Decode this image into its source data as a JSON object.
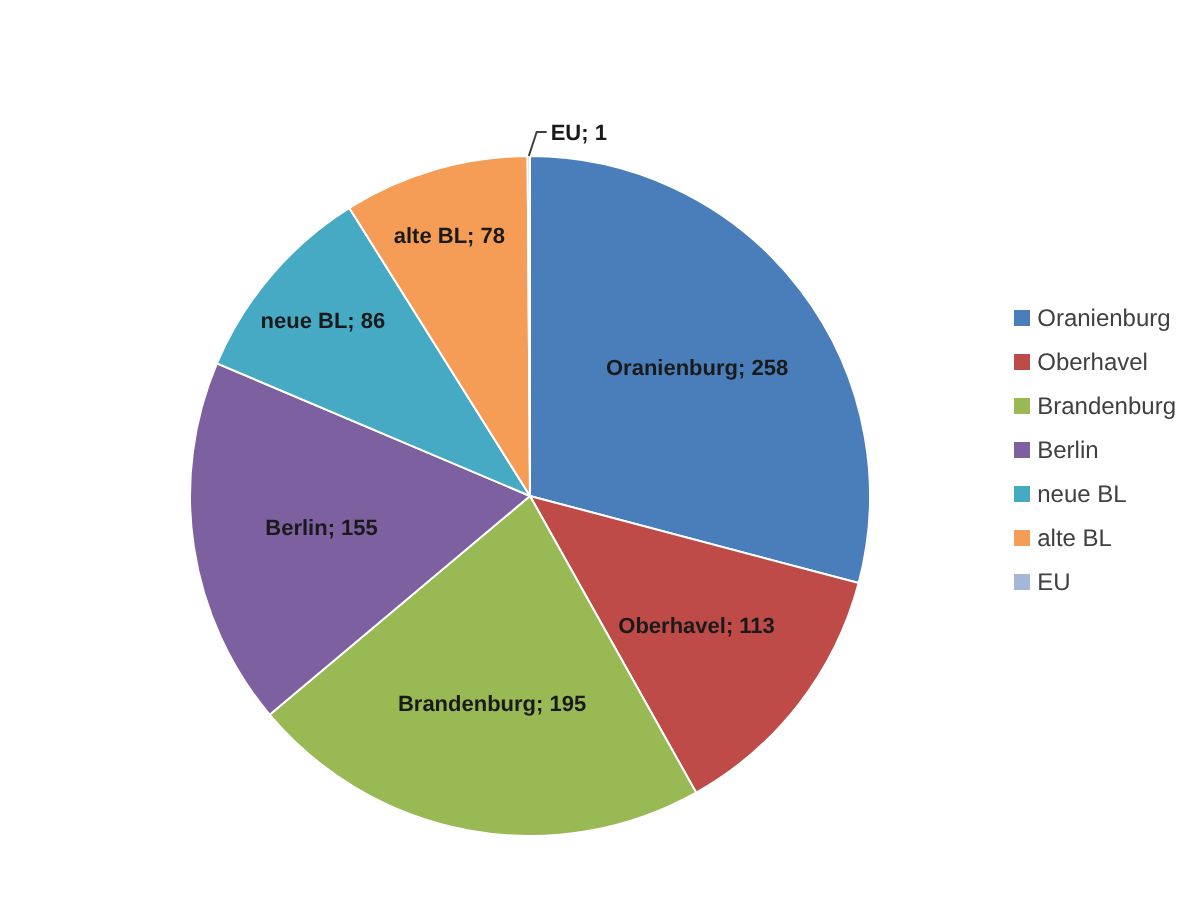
{
  "chart_data": {
    "type": "pie",
    "categories": [
      "Oranienburg",
      "Oberhavel",
      "Brandenburg",
      "Berlin",
      "neue BL",
      "alte BL",
      "EU"
    ],
    "values": [
      258,
      113,
      195,
      155,
      86,
      78,
      1
    ],
    "value_labels": [
      "Oranienburg; 258",
      "Oberhavel; 113",
      "Brandenburg; 195",
      "Berlin; 155",
      "neue BL; 86",
      "alte BL; 78",
      "EU; 1"
    ],
    "colors": [
      "#4a7ebb",
      "#be4b48",
      "#98b954",
      "#7d60a0",
      "#46aac5",
      "#f59d56",
      "#a5b7d9"
    ],
    "legend": "right"
  }
}
